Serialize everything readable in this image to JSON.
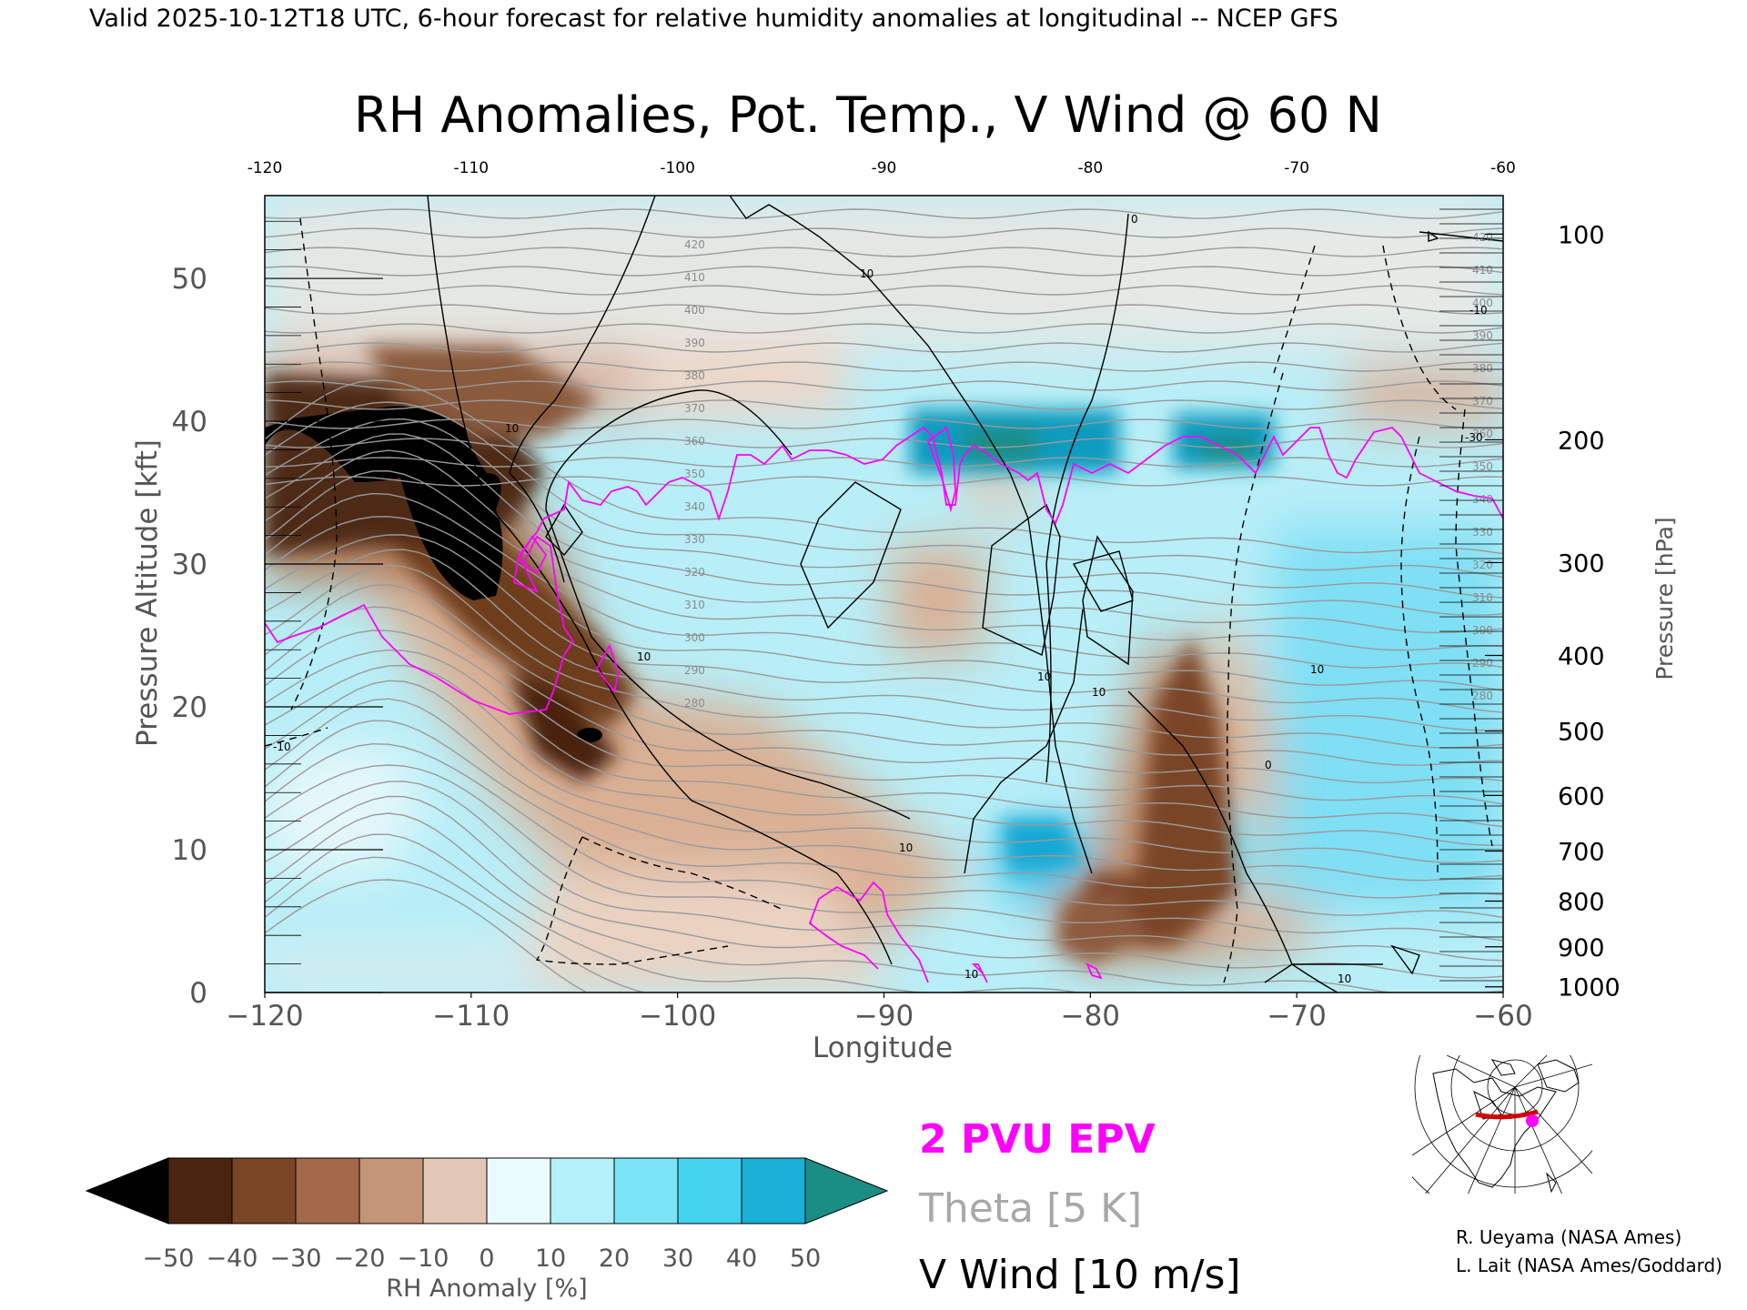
{
  "header": "Valid 2025-10-12T18 UTC, 6-hour forecast for relative humidity anomalies at longitudinal -- NCEP GFS",
  "chart_data": {
    "type": "heatmap",
    "title": "RH Anomalies, Pot. Temp., V Wind @ 60 N",
    "xlabel": "Longitude",
    "ylabel_left": "Pressure Altitude [kft]",
    "ylabel_right": "Pressure [hPa]",
    "xlim": [
      -120,
      -60
    ],
    "ylim": [
      0,
      55.8
    ],
    "x_ticks": [
      "-120",
      "-110",
      "-100",
      "-90",
      "-80",
      "-70",
      "-60"
    ],
    "top_x_ticks": [
      "-120",
      "-110",
      "-100",
      "-90",
      "-80",
      "-70",
      "-60"
    ],
    "y_ticks": [
      "0",
      "10",
      "20",
      "30",
      "40",
      "50"
    ],
    "pressure_ticks": [
      {
        "label": "100",
        "kft": 53.1
      },
      {
        "label": "200",
        "kft": 38.7
      },
      {
        "label": "300",
        "kft": 30.1
      },
      {
        "label": "400",
        "kft": 23.6
      },
      {
        "label": "500",
        "kft": 18.3
      },
      {
        "label": "600",
        "kft": 13.8
      },
      {
        "label": "700",
        "kft": 9.9
      },
      {
        "label": "800",
        "kft": 6.4
      },
      {
        "label": "900",
        "kft": 3.2
      },
      {
        "label": "1000",
        "kft": 0.4
      }
    ],
    "theta_labels": [
      "420",
      "410",
      "400",
      "390",
      "380",
      "370",
      "360",
      "350",
      "340",
      "330",
      "320",
      "310",
      "300",
      "290",
      "280"
    ],
    "wind_labels": [
      "10",
      "0",
      "-10",
      "-30"
    ],
    "colorbar": {
      "label": "RH Anomaly [%]",
      "ticks": [
        "-50",
        "-40",
        "-30",
        "-20",
        "-10",
        "0",
        "10",
        "20",
        "30",
        "40",
        "50"
      ],
      "colors": [
        "#000000",
        "#4a2410",
        "#7a4525",
        "#a26a48",
        "#c49477",
        "#e2c7b6",
        "#e9fbfd",
        "#b4f1fb",
        "#7be3f6",
        "#44d3ef",
        "#1aafd6",
        "#0a7494",
        "#1a8d85"
      ]
    },
    "legend": {
      "epv": "2 PVU EPV",
      "theta": "Theta [5 K]",
      "vwind": "V Wind [10 m/s]"
    },
    "colors": {
      "epv": "#ff00ff",
      "theta": "#a0a0a0",
      "vwind": "#000000"
    }
  },
  "inset_map": {
    "name": "locator-map"
  },
  "credits": [
    "R. Ueyama (NASA Ames)",
    "L. Lait (NASA Ames/Goddard)"
  ]
}
